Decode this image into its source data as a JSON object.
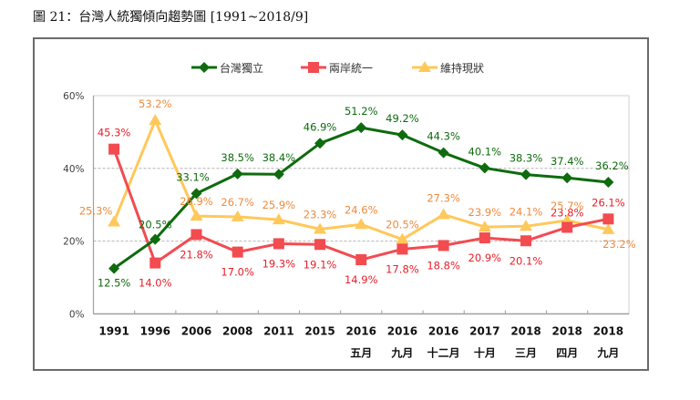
{
  "title": "圖 21：台灣人統獨傾向趨勢圖  [1991~2018/9]",
  "chart_data": {
    "type": "line",
    "title": "圖 21：台灣人統獨傾向趨勢圖  [1991~2018/9]",
    "xlabel": "",
    "ylabel": "",
    "ylim": [
      0,
      60
    ],
    "yticks": [
      "0%",
      "20%",
      "40%",
      "60%"
    ],
    "ytick_values": [
      0,
      20,
      40,
      60
    ],
    "grid": true,
    "legend_position": "top-center",
    "categories": [
      {
        "year": "1991",
        "sub": ""
      },
      {
        "year": "1996",
        "sub": ""
      },
      {
        "year": "2006",
        "sub": ""
      },
      {
        "year": "2008",
        "sub": ""
      },
      {
        "year": "2011",
        "sub": ""
      },
      {
        "year": "2015",
        "sub": ""
      },
      {
        "year": "2016",
        "sub": "五月"
      },
      {
        "year": "2016",
        "sub": "九月"
      },
      {
        "year": "2016",
        "sub": "十二月"
      },
      {
        "year": "2017",
        "sub": "十月"
      },
      {
        "year": "2018",
        "sub": "三月"
      },
      {
        "year": "2018",
        "sub": "四月"
      },
      {
        "year": "2018",
        "sub": "九月"
      }
    ],
    "series": [
      {
        "name": "台灣獨立",
        "color": "#0e6b0e",
        "label_color": "#0e6b0e",
        "marker": "diamond",
        "values": [
          12.5,
          20.5,
          33.1,
          38.5,
          38.4,
          46.9,
          51.2,
          49.2,
          44.3,
          40.1,
          38.3,
          37.4,
          36.2
        ],
        "labels": [
          "12.5%",
          "20.5%",
          "33.1%",
          "38.5%",
          "38.4%",
          "46.9%",
          "51.2%",
          "49.2%",
          "44.3%",
          "40.1%",
          "38.3%",
          "37.4%",
          "36.2%"
        ]
      },
      {
        "name": "兩岸統一",
        "color": "#f24b50",
        "label_color": "#e8202a",
        "marker": "square",
        "values": [
          45.3,
          14.0,
          21.8,
          17.0,
          19.3,
          19.1,
          14.9,
          17.8,
          18.8,
          20.9,
          20.1,
          23.8,
          26.1
        ],
        "labels": [
          "45.3%",
          "14.0%",
          "21.8%",
          "17.0%",
          "19.3%",
          "19.1%",
          "14.9%",
          "17.8%",
          "18.8%",
          "20.9%",
          "20.1%",
          "23.8%",
          "26.1%"
        ]
      },
      {
        "name": "維持現狀",
        "color": "#ffc85a",
        "label_color": "#ef8a3c",
        "marker": "triangle",
        "values": [
          25.3,
          53.2,
          26.9,
          26.7,
          25.9,
          23.3,
          24.6,
          20.5,
          27.3,
          23.9,
          24.1,
          25.7,
          23.2
        ],
        "labels": [
          "25.3%",
          "53.2%",
          "26.9%",
          "26.7%",
          "25.9%",
          "23.3%",
          "24.6%",
          "20.5%",
          "27.3%",
          "23.9%",
          "24.1%",
          "25.7%",
          "23.2%"
        ]
      }
    ]
  }
}
